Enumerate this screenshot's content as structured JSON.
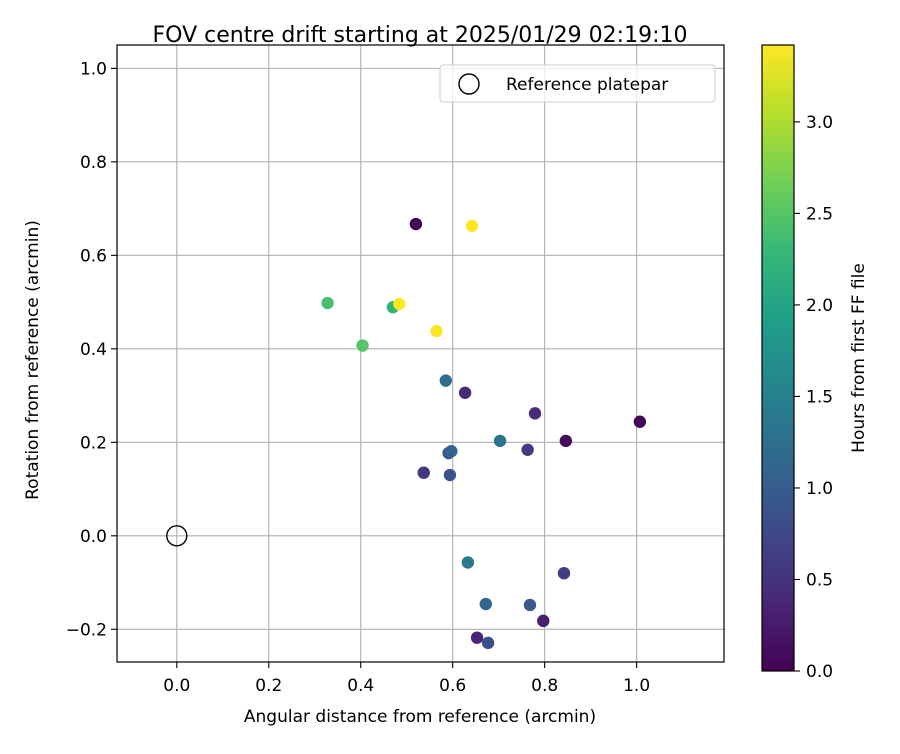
{
  "chart_data": {
    "type": "scatter",
    "title": "FOV centre drift starting at 2025/01/29 02:19:10",
    "xlabel": "Angular distance from reference (arcmin)",
    "ylabel": "Rotation from reference (arcmin)",
    "xlim": [
      -0.13,
      1.19
    ],
    "ylim": [
      -0.27,
      1.05
    ],
    "x_ticks": [
      0.0,
      0.2,
      0.4,
      0.6,
      0.8,
      1.0
    ],
    "y_ticks": [
      -0.2,
      0.0,
      0.2,
      0.4,
      0.6,
      0.8,
      1.0
    ],
    "x_tick_labels": [
      "0.0",
      "0.2",
      "0.4",
      "0.6",
      "0.8",
      "1.0"
    ],
    "y_tick_labels": [
      "−0.2",
      "0.0",
      "0.2",
      "0.4",
      "0.6",
      "0.8",
      "1.0"
    ],
    "grid": true,
    "legend": {
      "placement": "top-right",
      "entries": [
        "Reference platepar"
      ]
    },
    "reference_point": {
      "name": "Reference platepar",
      "x": 0.0,
      "y": 0.0
    },
    "colorbar": {
      "label": "Hours from first FF file",
      "range": [
        0.0,
        3.42
      ],
      "ticks": [
        0.0,
        0.5,
        1.0,
        1.5,
        2.0,
        2.5,
        3.0
      ],
      "tick_labels": [
        "0.0",
        "0.5",
        "1.0",
        "1.5",
        "2.0",
        "2.5",
        "3.0"
      ],
      "colormap": "viridis",
      "colors": [
        "#440154",
        "#482878",
        "#3e4989",
        "#31688e",
        "#26828e",
        "#1f9e89",
        "#35b779",
        "#6ece58",
        "#b5de2b",
        "#fde725"
      ]
    },
    "points": [
      {
        "x": 0.52,
        "y": 0.667,
        "hours": 0.0
      },
      {
        "x": 1.007,
        "y": 0.244,
        "hours": 0.05
      },
      {
        "x": 0.846,
        "y": 0.203,
        "hours": 0.1
      },
      {
        "x": 0.797,
        "y": -0.182,
        "hours": 0.3
      },
      {
        "x": 0.653,
        "y": -0.218,
        "hours": 0.35
      },
      {
        "x": 0.627,
        "y": 0.306,
        "hours": 0.4
      },
      {
        "x": 0.779,
        "y": 0.262,
        "hours": 0.45
      },
      {
        "x": 0.537,
        "y": 0.135,
        "hours": 0.55
      },
      {
        "x": 0.763,
        "y": 0.184,
        "hours": 0.6
      },
      {
        "x": 0.842,
        "y": -0.08,
        "hours": 0.65
      },
      {
        "x": 0.677,
        "y": -0.229,
        "hours": 0.85
      },
      {
        "x": 0.594,
        "y": 0.13,
        "hours": 0.9
      },
      {
        "x": 0.768,
        "y": -0.148,
        "hours": 0.95
      },
      {
        "x": 0.591,
        "y": 0.177,
        "hours": 1.0
      },
      {
        "x": 0.597,
        "y": 0.181,
        "hours": 1.05
      },
      {
        "x": 0.672,
        "y": -0.146,
        "hours": 1.1
      },
      {
        "x": 0.585,
        "y": 0.332,
        "hours": 1.2
      },
      {
        "x": 0.703,
        "y": 0.203,
        "hours": 1.3
      },
      {
        "x": 0.633,
        "y": -0.057,
        "hours": 1.4
      },
      {
        "x": 0.47,
        "y": 0.489,
        "hours": 2.25
      },
      {
        "x": 0.328,
        "y": 0.498,
        "hours": 2.4
      },
      {
        "x": 0.404,
        "y": 0.407,
        "hours": 2.5
      },
      {
        "x": 0.565,
        "y": 0.438,
        "hours": 3.4
      },
      {
        "x": 0.484,
        "y": 0.496,
        "hours": 3.42
      },
      {
        "x": 0.642,
        "y": 0.663,
        "hours": 3.42
      }
    ]
  }
}
